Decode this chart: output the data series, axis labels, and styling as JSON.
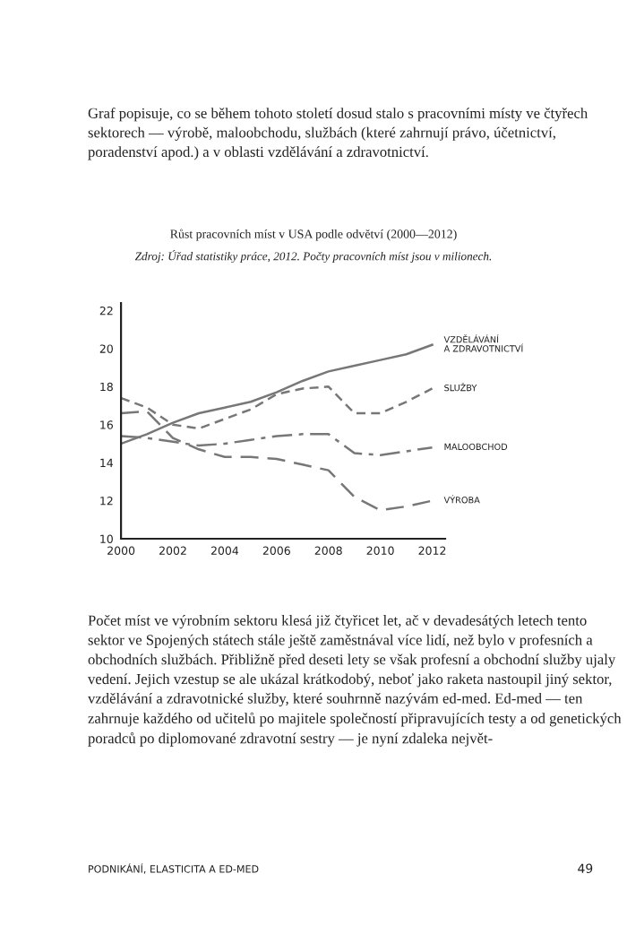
{
  "chart_data": {
    "type": "line",
    "title": "Růst pracovních míst v USA podle odvětví (2000—2012)",
    "subtitle": "Zdroj: Úřad statistiky práce, 2012. Počty pracovních míst jsou v milionech.",
    "x": [
      2000,
      2001,
      2002,
      2003,
      2004,
      2005,
      2006,
      2007,
      2008,
      2009,
      2010,
      2011,
      2012
    ],
    "series": [
      {
        "name": "VZDĚLÁVÁNÍ\nA ZDRAVOTNICTVÍ",
        "color": "#777777",
        "line_style": "solid",
        "values": [
          15.0,
          15.5,
          16.1,
          16.6,
          16.9,
          17.2,
          17.7,
          18.3,
          18.8,
          19.1,
          19.4,
          19.7,
          20.2
        ]
      },
      {
        "name": "SLUŽBY",
        "color": "#777777",
        "line_style": "dashed",
        "values": [
          17.4,
          16.9,
          16.0,
          15.8,
          16.3,
          16.8,
          17.6,
          17.9,
          18.0,
          16.6,
          16.6,
          17.2,
          17.9
        ]
      },
      {
        "name": "MALOOBCHOD",
        "color": "#777777",
        "line_style": "dashdot",
        "values": [
          15.4,
          15.3,
          15.1,
          14.9,
          15.0,
          15.2,
          15.4,
          15.5,
          15.5,
          14.5,
          14.4,
          14.6,
          14.8
        ]
      },
      {
        "name": "VÝROBA",
        "color": "#777777",
        "line_style": "longdash",
        "values": [
          16.6,
          16.7,
          15.3,
          14.7,
          14.3,
          14.3,
          14.2,
          13.9,
          13.6,
          12.2,
          11.5,
          11.7,
          12.0
        ]
      }
    ],
    "xlim": [
      2000,
      2012.5
    ],
    "xticks": [
      2000,
      2002,
      2004,
      2006,
      2008,
      2010,
      2012
    ],
    "ylim": [
      10,
      22.4
    ],
    "yticks": [
      10,
      12,
      14,
      16,
      18,
      20,
      22
    ],
    "grid": false,
    "legend": false,
    "marker": "none",
    "annotations": [
      "Graf popisuje, co se během tohoto století dosud stalo s pracovními místy ve čtyřech sektorech — výrobě, maloobchodu, službách (které zahrnují právo, účetnictví, poradenství apod.) a v oblasti vzdělávání a zdravotnictví.",
      "Počet míst ve výrobním sektoru klesá již čtyřicet let, ač v devadesátých letech tento sektor ve Spojených státech stále ještě zaměstnával více lidí, než bylo v profesních a obchodních službách. Přibližně před deseti lety se však profesní a obchodní služby ujaly vedení. Jejich vzestup se ale ukázal krátkodobý, neboť jako raketa nastoupil jiný sektor, vzdělávání a zdravotnické služby, které souhrnně nazývám ed-med. Ed-med — ten zahrnuje každého od učitelů po majitele společností připravujících testy a od genetických poradců po diplomované zdravotní sestry — je nyní zdaleka největ-",
      "PODNIKÁNÍ, ELASTICITA A ED-MED",
      "49"
    ]
  }
}
